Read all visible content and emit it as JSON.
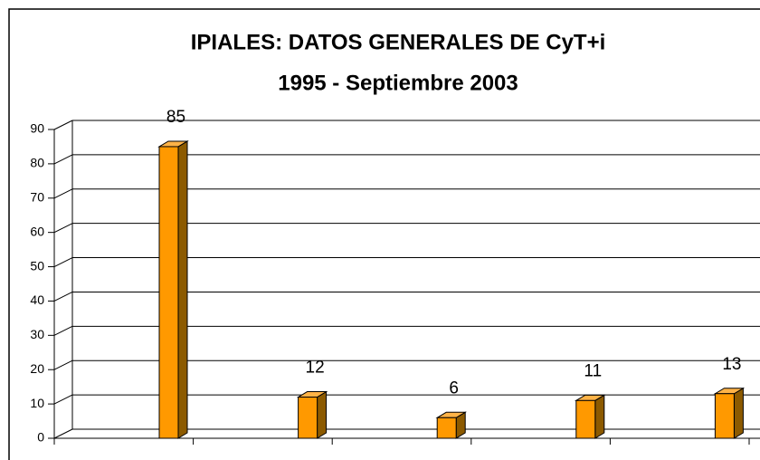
{
  "chart_data": {
    "type": "bar3d",
    "title": "IPIALES: DATOS GENERALES DE CyT+i",
    "subtitle": "1995 - Septiembre 2003",
    "categories": [
      null,
      null,
      null,
      null,
      null
    ],
    "values": [
      85,
      12,
      6,
      11,
      13
    ],
    "color": "#ff9900",
    "ylim": [
      0,
      90
    ],
    "yticks": [
      0,
      10,
      20,
      30,
      40,
      50,
      60,
      70,
      80,
      90
    ],
    "grid": true
  }
}
